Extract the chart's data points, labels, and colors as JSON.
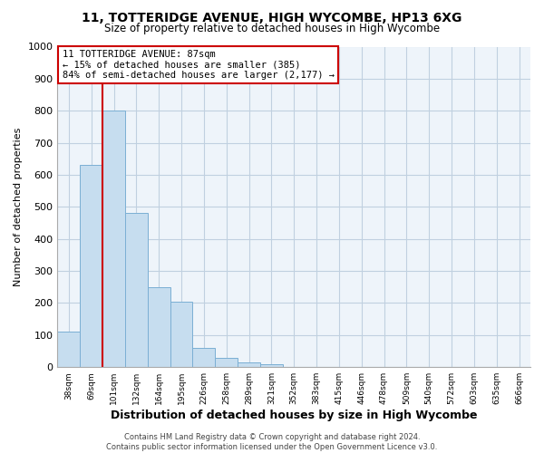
{
  "title": "11, TOTTERIDGE AVENUE, HIGH WYCOMBE, HP13 6XG",
  "subtitle": "Size of property relative to detached houses in High Wycombe",
  "xlabel": "Distribution of detached houses by size in High Wycombe",
  "ylabel": "Number of detached properties",
  "bar_values": [
    110,
    630,
    800,
    480,
    250,
    205,
    60,
    30,
    15,
    10,
    0,
    0,
    0,
    0,
    0,
    0,
    0,
    0,
    0,
    0,
    0
  ],
  "bar_labels": [
    "38sqm",
    "69sqm",
    "101sqm",
    "132sqm",
    "164sqm",
    "195sqm",
    "226sqm",
    "258sqm",
    "289sqm",
    "321sqm",
    "352sqm",
    "383sqm",
    "415sqm",
    "446sqm",
    "478sqm",
    "509sqm",
    "540sqm",
    "572sqm",
    "603sqm",
    "635sqm",
    "666sqm"
  ],
  "bar_color": "#c6ddef",
  "bar_edge_color": "#7bafd4",
  "vline_color": "#cc0000",
  "ylim": [
    0,
    1000
  ],
  "yticks": [
    0,
    100,
    200,
    300,
    400,
    500,
    600,
    700,
    800,
    900,
    1000
  ],
  "annotation_title": "11 TOTTERIDGE AVENUE: 87sqm",
  "annotation_line1": "← 15% of detached houses are smaller (385)",
  "annotation_line2": "84% of semi-detached houses are larger (2,177) →",
  "annotation_box_color": "#ffffff",
  "annotation_box_edge": "#cc0000",
  "footer_line1": "Contains HM Land Registry data © Crown copyright and database right 2024.",
  "footer_line2": "Contains public sector information licensed under the Open Government Licence v3.0.",
  "background_color": "#ffffff",
  "plot_bg_color": "#eef4fa",
  "grid_color": "#c0d0e0"
}
